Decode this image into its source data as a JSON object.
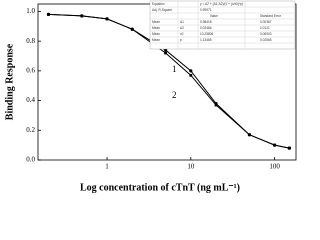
{
  "chart_data": {
    "type": "line",
    "x_label": "Log concentration of cTnT (ng mL⁻¹)",
    "y_label": "Binding Response",
    "x": [
      0.2,
      0.5,
      1,
      2,
      5,
      10,
      20,
      50,
      100,
      150
    ],
    "series": [
      {
        "name": "1",
        "color": "#000000",
        "values": [
          0.98,
          0.97,
          0.95,
          0.88,
          0.74,
          0.6,
          0.38,
          0.17,
          0.1,
          0.08
        ]
      },
      {
        "name": "2",
        "color": "#000000",
        "values": [
          0.98,
          0.97,
          0.95,
          0.88,
          0.72,
          0.57,
          0.37,
          0.17,
          0.1,
          0.08
        ]
      }
    ],
    "xlim": [
      0.15,
      180
    ],
    "log_x": true,
    "xticks": [
      1,
      10,
      100
    ],
    "ylim": [
      0,
      1.05
    ],
    "yticks": [
      {
        "value": 0,
        "label": "0.0"
      },
      {
        "value": 0.2,
        "label": "0.2"
      },
      {
        "value": 0.4,
        "label": "0.4"
      },
      {
        "value": 0.6,
        "label": "0.6"
      },
      {
        "value": 0.8,
        "label": "0.8"
      },
      {
        "value": 1,
        "label": "1.0"
      }
    ],
    "fit_table": {
      "equation_label": "Equation",
      "equation": "y = A2 + (A1-A2)/(1 + (x/x0)^p)",
      "r2_label": "Adj. R-Square",
      "r2": "0.99971",
      "header": [
        "Value",
        "Standard Error"
      ],
      "rows": [
        [
          "Mean",
          "A1",
          "0.98418",
          "0.00387"
        ],
        [
          "Mean",
          "A2",
          "0.02466",
          "0.0121"
        ],
        [
          "Mean",
          "x0",
          "10.25806",
          "0.06903"
        ],
        [
          "Mean",
          "p",
          "1.13465",
          "0.02565"
        ]
      ]
    }
  }
}
